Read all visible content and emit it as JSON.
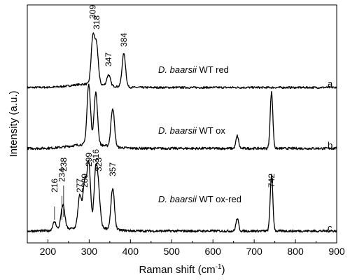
{
  "chart_data": {
    "type": "line",
    "xlabel": "Raman shift (cm",
    "xlabel_sup": "-1",
    "xlabel_end": ")",
    "ylabel": "Intensity (a.u.)",
    "xlim": [
      150,
      900
    ],
    "xticks": [
      200,
      300,
      400,
      500,
      600,
      700,
      800,
      900
    ],
    "yticks_shown": false,
    "series": [
      {
        "letter": "a",
        "label_species": "D. baarsii",
        "label_rest": " WT red",
        "peaks": [
          {
            "x": 309,
            "y": 0.8
          },
          {
            "x": 318,
            "y": 0.64
          },
          {
            "x": 347,
            "y": 0.19
          },
          {
            "x": 384,
            "y": 0.58
          }
        ],
        "annotations": [
          "309",
          "318",
          "347",
          "384"
        ]
      },
      {
        "letter": "b",
        "label_species": "D. baarsii",
        "label_rest": " WT ox",
        "peaks": [
          {
            "x": 299,
            "y": 0.85
          },
          {
            "x": 316,
            "y": 0.74
          },
          {
            "x": 357,
            "y": 0.55
          },
          {
            "x": 659,
            "y": 0.18
          },
          {
            "x": 742,
            "y": 0.8
          }
        ],
        "annotations": []
      },
      {
        "letter": "c",
        "label_species": "D. baarsii",
        "label_rest": " WT ox-red",
        "peaks": [
          {
            "x": 216,
            "y": 0.12
          },
          {
            "x": 234,
            "y": 0.17
          },
          {
            "x": 238,
            "y": 0.22
          },
          {
            "x": 277,
            "y": 0.45
          },
          {
            "x": 289,
            "y": 0.62
          },
          {
            "x": 299,
            "y": 0.9
          },
          {
            "x": 316,
            "y": 0.78
          },
          {
            "x": 323,
            "y": 0.42
          },
          {
            "x": 357,
            "y": 0.58
          },
          {
            "x": 659,
            "y": 0.18
          },
          {
            "x": 742,
            "y": 0.8
          }
        ],
        "annotations": [
          "216",
          "234",
          "238",
          "277",
          "289",
          "299",
          "316",
          "323",
          "357",
          "742"
        ]
      }
    ]
  }
}
